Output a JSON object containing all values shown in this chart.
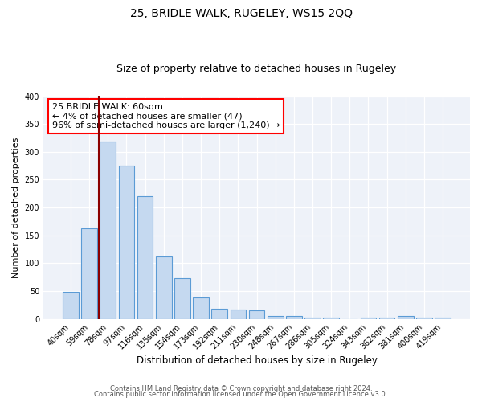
{
  "title": "25, BRIDLE WALK, RUGELEY, WS15 2QQ",
  "subtitle": "Size of property relative to detached houses in Rugeley",
  "xlabel": "Distribution of detached houses by size in Rugeley",
  "ylabel": "Number of detached properties",
  "categories": [
    "40sqm",
    "59sqm",
    "78sqm",
    "97sqm",
    "116sqm",
    "135sqm",
    "154sqm",
    "173sqm",
    "192sqm",
    "211sqm",
    "230sqm",
    "248sqm",
    "267sqm",
    "286sqm",
    "305sqm",
    "324sqm",
    "343sqm",
    "362sqm",
    "381sqm",
    "400sqm",
    "419sqm"
  ],
  "values": [
    49,
    163,
    319,
    275,
    220,
    112,
    73,
    39,
    18,
    17,
    16,
    5,
    5,
    2,
    2,
    0,
    2,
    2,
    5,
    2,
    2
  ],
  "bar_color": "#c5d9f0",
  "bar_edge_color": "#5b9bd5",
  "vline_color": "#8b0000",
  "vline_pos": 1.5,
  "ylim": [
    0,
    400
  ],
  "yticks": [
    0,
    50,
    100,
    150,
    200,
    250,
    300,
    350,
    400
  ],
  "annotation_text": "25 BRIDLE WALK: 60sqm\n← 4% of detached houses are smaller (47)\n96% of semi-detached houses are larger (1,240) →",
  "bg_color": "#eef2f9",
  "footer_line1": "Contains HM Land Registry data © Crown copyright and database right 2024.",
  "footer_line2": "Contains public sector information licensed under the Open Government Licence v3.0."
}
